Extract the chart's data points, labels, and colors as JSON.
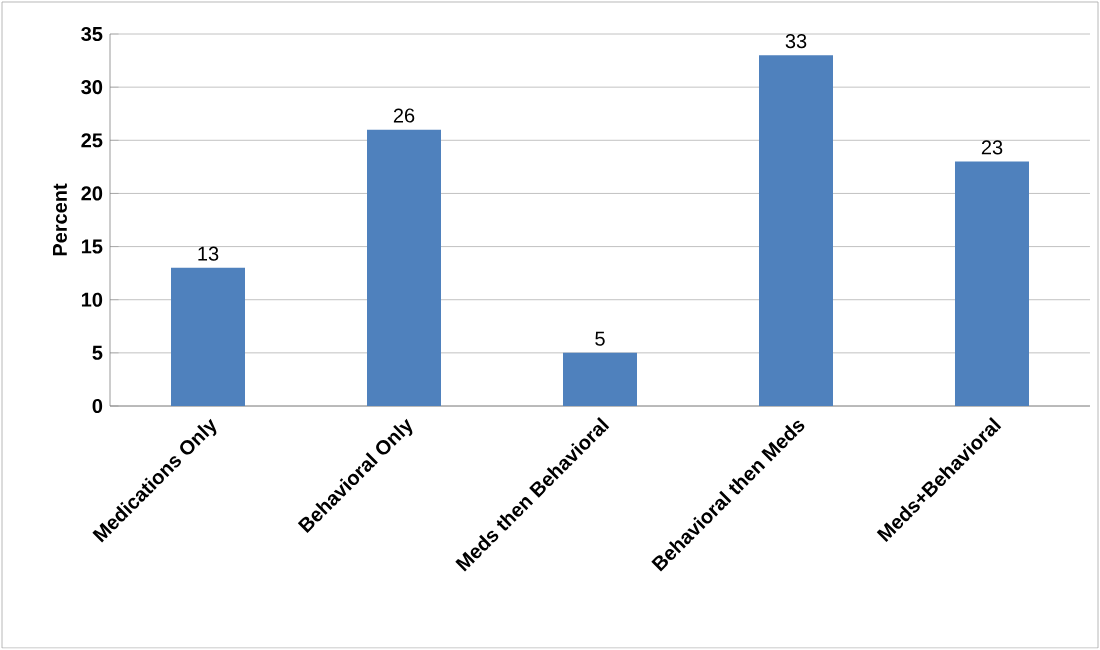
{
  "chart_data": {
    "type": "bar",
    "ylabel": "Percent",
    "categories": [
      "Medications Only",
      "Behavioral Only",
      "Meds then Behavioral",
      "Behavioral then Meds",
      "Meds+Behavioral"
    ],
    "values": [
      13,
      26,
      5,
      33,
      23
    ],
    "color": "#4f81bd",
    "ylim": [
      0,
      35
    ],
    "yticks": [
      0,
      5,
      10,
      15,
      20,
      25,
      30,
      35
    ],
    "grid": "y",
    "data_labels": true
  }
}
